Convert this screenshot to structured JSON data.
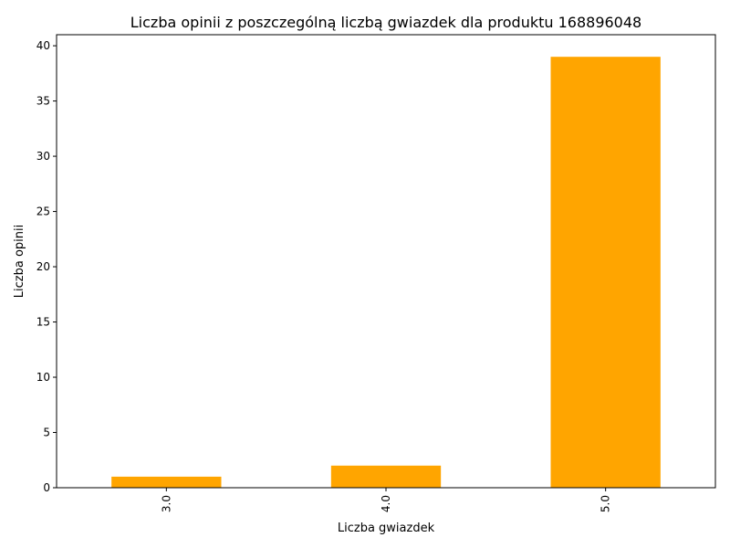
{
  "colors": {
    "bar": "#ffa500",
    "axis": "#000000",
    "background": "#ffffff"
  },
  "chart_data": {
    "type": "bar",
    "title": "Liczba opinii z poszczególną liczbą gwiazdek dla produktu 168896048",
    "xlabel": "Liczba gwiazdek",
    "ylabel": "Liczba opinii",
    "categories": [
      "3.0",
      "4.0",
      "5.0"
    ],
    "values": [
      1,
      2,
      39
    ],
    "ylim": [
      0,
      41
    ],
    "yticks": [
      0,
      5,
      10,
      15,
      20,
      25,
      30,
      35,
      40
    ],
    "xtick_rotation": "vertical",
    "grid": false,
    "legend": "none"
  }
}
